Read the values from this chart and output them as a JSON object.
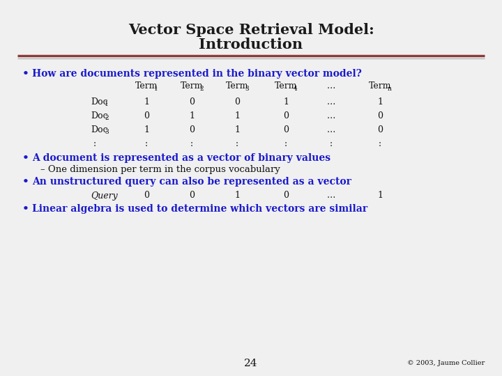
{
  "title_line1": "Vector Space Retrieval Model:",
  "title_line2": "Introduction",
  "title_color": "#1a1a1a",
  "title_fontsize": 15,
  "separator_color_top": "#8B3A3A",
  "separator_color_bottom": "#aaaaaa",
  "blue_color": "#1a1acc",
  "black": "#111111",
  "bg_color": "#f0f0f0",
  "bullet1": "How are documents represented in the binary vector model?",
  "bullet2": "A document is represented as a vector of binary values",
  "sub_bullet2": "– One dimension per term in the corpus vocabulary",
  "bullet3": "An unstructured query can also be represented as a vector",
  "bullet4": "Linear algebra is used to determine which vectors are similar",
  "page_num": "24",
  "copyright": "© 2003, Jaume Collier",
  "table_header_base": "Term",
  "table_header_subs": [
    "1",
    "2",
    "3",
    "4",
    "n"
  ],
  "row_label_base": "Doc",
  "row_label_subs": [
    "1",
    "2",
    "3"
  ],
  "table_data": [
    [
      "1",
      "0",
      "0",
      "1",
      "…",
      "1"
    ],
    [
      "0",
      "1",
      "1",
      "0",
      "…",
      "0"
    ],
    [
      "1",
      "0",
      "1",
      "0",
      "…",
      "0"
    ],
    [
      ":",
      ":",
      ":",
      ":",
      ":",
      ":"
    ]
  ],
  "query_values": [
    "0",
    "0",
    "1",
    "0",
    "…",
    "1"
  ]
}
